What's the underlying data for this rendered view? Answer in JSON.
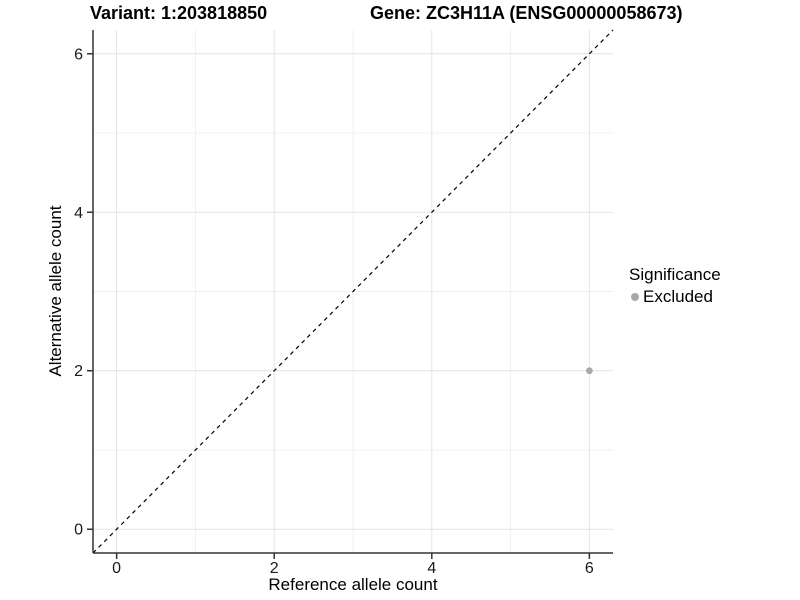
{
  "chart_data": {
    "type": "scatter",
    "title_left": "Variant: 1:203818850",
    "title_right": "Gene: ZC3H11A (ENSG00000058673)",
    "xlabel": "Reference allele count",
    "ylabel": "Alternative allele count",
    "xlim": [
      -0.3,
      6.3
    ],
    "ylim": [
      -0.3,
      6.3
    ],
    "x_ticks": [
      0,
      2,
      4,
      6
    ],
    "y_ticks": [
      0,
      2,
      4,
      6
    ],
    "x_minor_ticks": [
      1,
      3,
      5
    ],
    "y_minor_ticks": [
      1,
      3,
      5
    ],
    "grid": true,
    "identity_line": {
      "slope": 1,
      "intercept": 0,
      "style": "dashed",
      "color": "#000000"
    },
    "series": [
      {
        "name": "Excluded",
        "color": "#a8a8a8",
        "points": [
          {
            "x": 6,
            "y": 2
          }
        ]
      }
    ],
    "legend": {
      "position": "right",
      "title": "Significance",
      "items": [
        {
          "label": "Excluded",
          "color": "#a8a8a8"
        }
      ]
    },
    "colors": {
      "panel_background": "#ffffff",
      "grid_major": "#e4e4e4",
      "grid_minor": "#f0f0f0",
      "axis_line": "#333333",
      "tick_mark": "#333333",
      "tick_label": "#1a1a1a",
      "text": "#000000"
    }
  }
}
